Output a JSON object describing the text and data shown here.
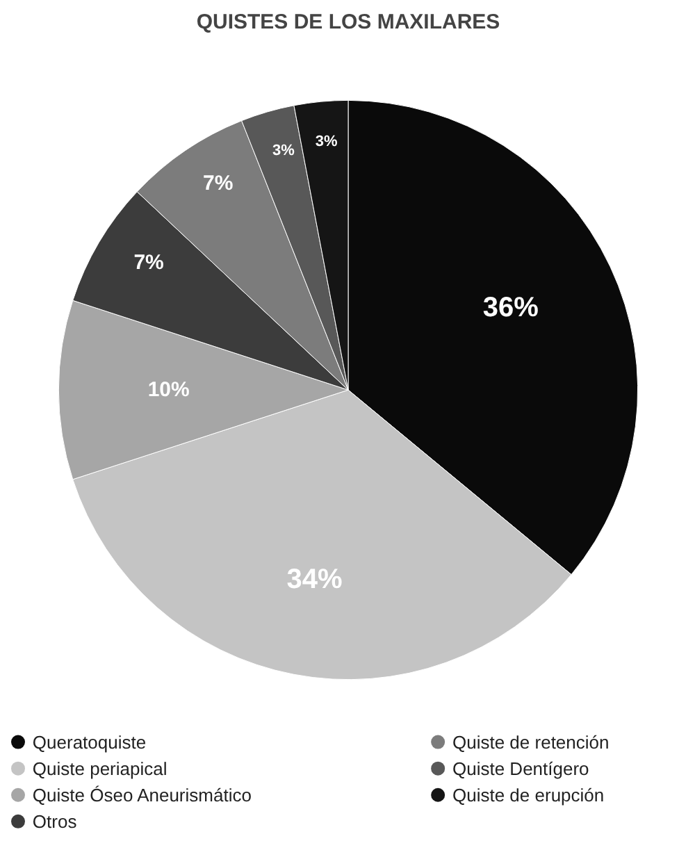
{
  "chart_data": {
    "type": "pie",
    "title": "QUISTES DE LOS MAXILARES",
    "categories": [
      "Queratoquiste",
      "Quiste periapical",
      "Quiste Óseo Aneurismático",
      "Otros",
      "Quiste de retención",
      "Quiste Dentígero",
      "Quiste de erupción"
    ],
    "values": [
      36,
      34,
      10,
      7,
      7,
      3,
      3
    ],
    "colors": [
      "#0a0a0a",
      "#c4c4c4",
      "#a6a6a6",
      "#3c3c3c",
      "#7c7c7c",
      "#585858",
      "#151515"
    ],
    "value_labels": [
      "36%",
      "34%",
      "10%",
      "7%",
      "7%",
      "3%",
      "3%"
    ],
    "legend": "bottom"
  }
}
